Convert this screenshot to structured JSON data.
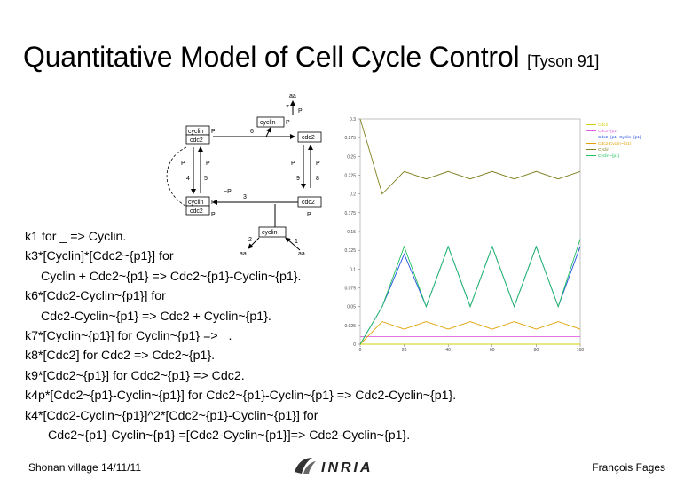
{
  "slide": {
    "title": "Quantitative Model of Cell Cycle Control",
    "citation": "[Tyson 91]",
    "reactions": [
      {
        "text": "k1 for  _ => Cyclin.",
        "indent": 0
      },
      {
        "text": "k3*[Cyclin]*[Cdc2~{p1}] for",
        "indent": 0
      },
      {
        "text": "Cyclin + Cdc2~{p1} => Cdc2~{p1}-Cyclin~{p1}.",
        "indent": 1
      },
      {
        "text": "k6*[Cdc2-Cyclin~{p1}] for",
        "indent": 0
      },
      {
        "text": "Cdc2-Cyclin~{p1} => Cdc2 + Cyclin~{p1}.",
        "indent": 1
      },
      {
        "text": "k7*[Cyclin~{p1}] for Cyclin~{p1} => _.",
        "indent": 0
      },
      {
        "text": "k8*[Cdc2] for  Cdc2 => Cdc2~{p1}.",
        "indent": 0
      },
      {
        "text": "k9*[Cdc2~{p1}] for Cdc2~{p1} => Cdc2.",
        "indent": 0
      },
      {
        "text": "k4p*[Cdc2~{p1}-Cyclin~{p1}] for  Cdc2~{p1}-Cyclin~{p1} => Cdc2-Cyclin~{p1}.",
        "indent": 0
      },
      {
        "text": "k4*[Cdc2-Cyclin~{p1}]^2*[Cdc2~{p1}-Cyclin~{p1}] for",
        "indent": 0
      },
      {
        "text": "Cdc2~{p1}-Cyclin~{p1}  =[Cdc2-Cyclin~{p1}]=>  Cdc2-Cyclin~{p1}.",
        "indent": 2
      }
    ],
    "footer": {
      "left": "Shonan village 14/11/11",
      "right": "François Fages",
      "logo": "INRIA"
    }
  },
  "diagram": {
    "labels": {
      "aa": "aa",
      "cyclin": "cyclin",
      "cdc2": "cdc2",
      "p": "P",
      "pi": "P",
      "minus_p": "~P",
      "k1": "1",
      "k2": "2",
      "k3": "3",
      "k4": "4",
      "k5": "5",
      "k6": "6",
      "k7": "7",
      "k8": "8",
      "k9": "9"
    }
  },
  "chart_data": {
    "type": "line",
    "x": [
      0,
      10,
      20,
      30,
      40,
      50,
      60,
      70,
      80,
      90,
      100
    ],
    "xticks": [
      "0",
      "20",
      "40",
      "60",
      "80",
      "100"
    ],
    "yticks": [
      "0",
      "0.025",
      "0.05",
      "0.075",
      "0.1",
      "0.125",
      "0.15",
      "0.175",
      "0.2",
      "0.225",
      "0.25",
      "0.275",
      "0.3"
    ],
    "ylim": [
      0,
      0.3
    ],
    "xlim": [
      0,
      100
    ],
    "legend_position": "top-right",
    "series": [
      {
        "name": "Cdc2",
        "color": "#d0d000",
        "values": [
          0.0,
          0.0,
          0.0,
          0.0,
          0.0,
          0.0,
          0.0,
          0.0,
          0.0,
          0.0,
          0.0
        ]
      },
      {
        "name": "Cdc2~{p1}",
        "color": "#e060e0",
        "values": [
          0.01,
          0.01,
          0.01,
          0.01,
          0.01,
          0.01,
          0.01,
          0.01,
          0.01,
          0.01,
          0.01
        ]
      },
      {
        "name": "Cdc2~{p1}-Cyclin~{p1}",
        "color": "#2050e0",
        "values": [
          0.0,
          0.05,
          0.12,
          0.05,
          0.13,
          0.05,
          0.13,
          0.05,
          0.13,
          0.05,
          0.13
        ]
      },
      {
        "name": "Cdc2-Cyclin~{p1}",
        "color": "#e0a000",
        "values": [
          0.0,
          0.03,
          0.02,
          0.03,
          0.02,
          0.03,
          0.02,
          0.03,
          0.02,
          0.03,
          0.02
        ]
      },
      {
        "name": "Cyclin",
        "color": "#808020",
        "values": [
          0.3,
          0.2,
          0.23,
          0.22,
          0.23,
          0.22,
          0.23,
          0.22,
          0.23,
          0.22,
          0.23
        ]
      },
      {
        "name": "Cyclin~{p1}",
        "color": "#20c060",
        "values": [
          0.0,
          0.05,
          0.13,
          0.05,
          0.13,
          0.05,
          0.13,
          0.05,
          0.13,
          0.05,
          0.14
        ]
      }
    ]
  }
}
